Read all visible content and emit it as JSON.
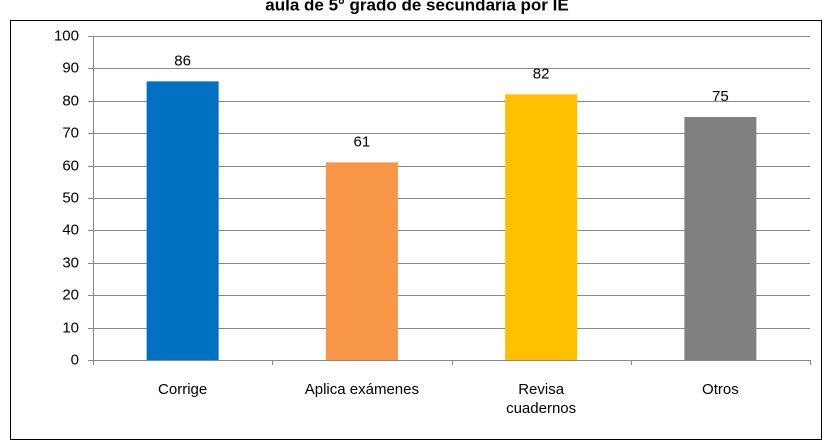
{
  "chart_data": {
    "type": "bar",
    "title": "aula de 5° grado de secundaria por IE",
    "categories": [
      "Corrige",
      "Aplica exámenes",
      [
        "Revisa",
        "cuadernos"
      ],
      "Otros"
    ],
    "values": [
      86,
      61,
      82,
      75
    ],
    "colors": [
      "#0070c0",
      "#f79646",
      "#ffc000",
      "#808080"
    ],
    "ylim": [
      0,
      100
    ],
    "yticks": [
      0,
      10,
      20,
      30,
      40,
      50,
      60,
      70,
      80,
      90,
      100
    ],
    "grid": true
  }
}
